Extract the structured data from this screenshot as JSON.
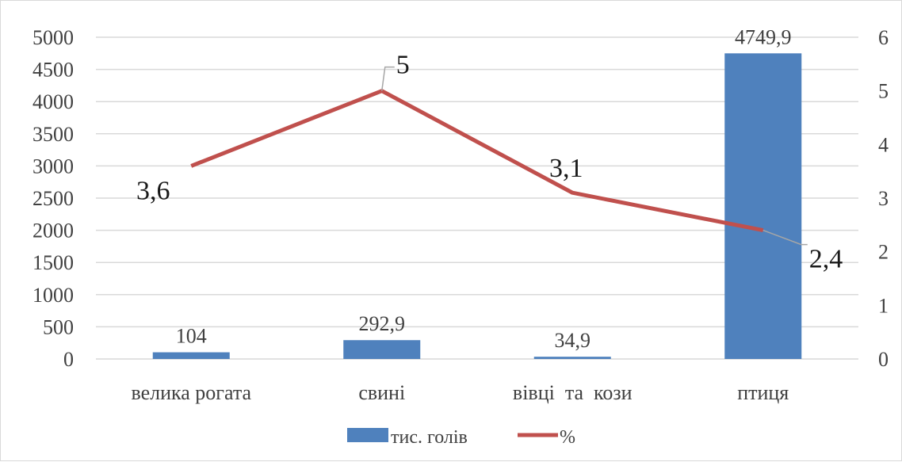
{
  "chart_data": {
    "type": "bar",
    "categories": [
      "велика рогата",
      "свині",
      "вівці  та  кози",
      "птиця"
    ],
    "series": [
      {
        "name": "тис. голів",
        "type": "bar",
        "axis": "left",
        "color": "#4f81bd",
        "values": [
          104,
          292.9,
          34.9,
          4749.9
        ],
        "labels": [
          "104",
          "292,9",
          "34,9",
          "4749,9"
        ]
      },
      {
        "name": "%",
        "type": "line",
        "axis": "right",
        "color": "#c0504d",
        "values": [
          3.6,
          5,
          3.1,
          2.4
        ],
        "labels": [
          "3,6",
          "5",
          "3,1",
          "2,4"
        ]
      }
    ],
    "y_left": {
      "range": [
        0,
        5000
      ],
      "ticks": [
        0,
        500,
        1000,
        1500,
        2000,
        2500,
        3000,
        3500,
        4000,
        4500,
        5000
      ]
    },
    "y_right": {
      "range": [
        0,
        6
      ],
      "ticks": [
        0,
        1,
        2,
        3,
        4,
        5,
        6
      ]
    },
    "grid": true,
    "legend_position": "bottom"
  }
}
